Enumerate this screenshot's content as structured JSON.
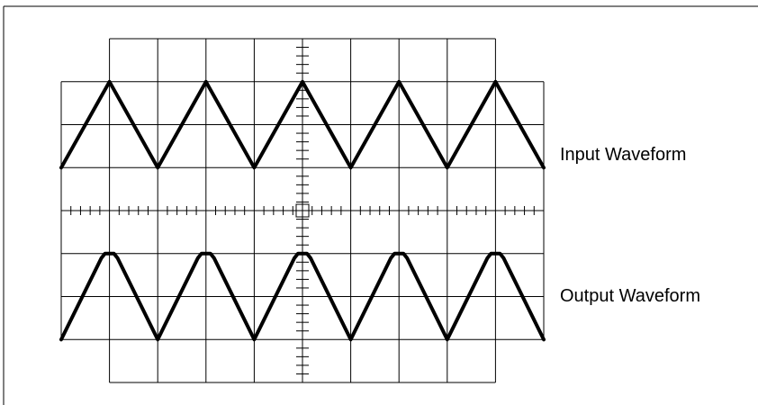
{
  "labels": {
    "input": "Input Waveform",
    "output": "Output Waveform"
  },
  "scope": {
    "divisions_x": 10,
    "divisions_y": 8,
    "minor_ticks_per_division": 5
  },
  "waveforms": {
    "input": {
      "shape": "triangle",
      "cycles": 5,
      "amplitude_divisions": 2
    },
    "output": {
      "shape": "clipped-triangle",
      "cycles": 5,
      "amplitude_divisions": 2
    }
  },
  "colors": {
    "line": "#000000",
    "background": "#ffffff"
  }
}
